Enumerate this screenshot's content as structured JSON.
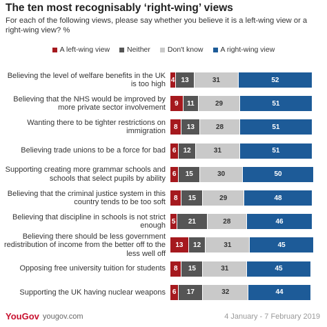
{
  "chart_data": {
    "type": "stacked-bar-horizontal",
    "title": "The ten most recognisably ‘right-wing’ views",
    "subtitle": "For each of the following views, please say whether you believe it is a left-wing view or a right-wing view? %",
    "categories": [
      "Believing the level of welfare benefits in the UK is too high",
      "Believing that the NHS would be improved by more private sector involvement",
      "Wanting there to be tighter restrictions on immigration",
      "Believing trade unions to be a force for bad",
      "Supporting creating more grammar schools and schools that select pupils by ability",
      "Believing that the criminal justice system in this country tends to be too soft",
      "Believing that discipline in schools is not strict enough",
      "Believing there should be less government redistribution of income from the better off to the less well off",
      "Opposing free university tuition for students",
      "Supporting the UK having nuclear weapons"
    ],
    "series": [
      {
        "name": "A left-wing view",
        "color": "#a5191e",
        "label_color": "#ffffff",
        "values": [
          4,
          9,
          8,
          6,
          6,
          8,
          5,
          13,
          8,
          6
        ]
      },
      {
        "name": "Neither",
        "color": "#555555",
        "label_color": "#ffffff",
        "values": [
          13,
          11,
          13,
          12,
          15,
          15,
          21,
          12,
          15,
          17
        ]
      },
      {
        "name": "Don't know",
        "color": "#c9c9c9",
        "label_color": "#333333",
        "values": [
          31,
          29,
          28,
          31,
          30,
          29,
          28,
          31,
          31,
          32
        ]
      },
      {
        "name": "A right-wing view",
        "color": "#1d5b98",
        "label_color": "#ffffff",
        "values": [
          52,
          51,
          51,
          51,
          50,
          48,
          46,
          45,
          45,
          44
        ]
      }
    ]
  },
  "footer": {
    "logo": "YouGov",
    "website": "yougov.com",
    "date": "4 January - 7 February 2019"
  }
}
